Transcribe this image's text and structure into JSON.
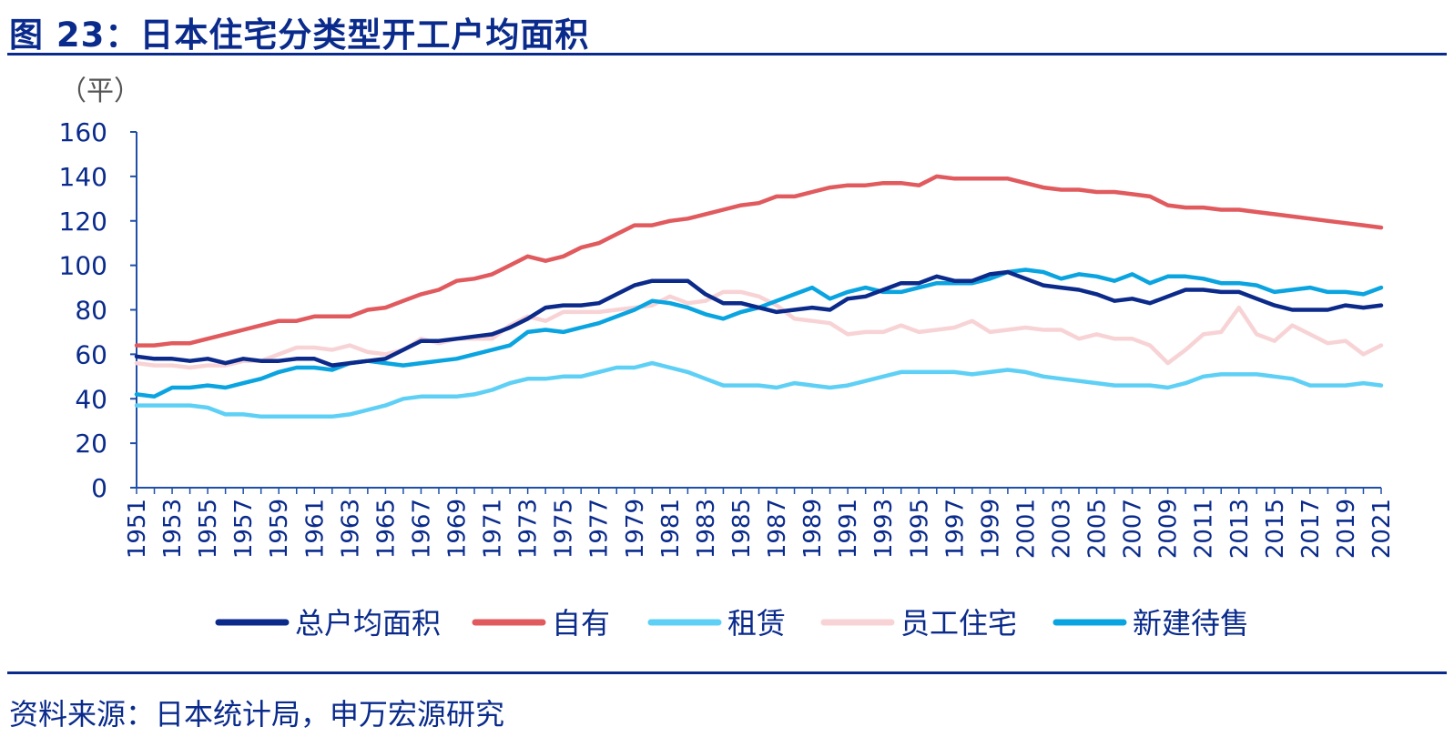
{
  "header": {
    "title": "图 23：日本住宅分类型开工户均面积"
  },
  "footer": {
    "source": "资料来源：日本统计局，申万宏源研究"
  },
  "chart_data": {
    "type": "line",
    "title": "图 23：日本住宅分类型开工户均面积",
    "ylabel": "（平）",
    "xlabel": "",
    "ylim": [
      0,
      160
    ],
    "yticks": [
      0,
      20,
      40,
      60,
      80,
      100,
      120,
      140,
      160
    ],
    "x": [
      1951,
      1952,
      1953,
      1954,
      1955,
      1956,
      1957,
      1958,
      1959,
      1960,
      1961,
      1962,
      1963,
      1964,
      1965,
      1966,
      1967,
      1968,
      1969,
      1970,
      1971,
      1972,
      1973,
      1974,
      1975,
      1976,
      1977,
      1978,
      1979,
      1980,
      1981,
      1982,
      1983,
      1984,
      1985,
      1986,
      1987,
      1988,
      1989,
      1990,
      1991,
      1992,
      1993,
      1994,
      1995,
      1996,
      1997,
      1998,
      1999,
      2000,
      2001,
      2002,
      2003,
      2004,
      2005,
      2006,
      2007,
      2008,
      2009,
      2010,
      2011,
      2012,
      2013,
      2014,
      2015,
      2016,
      2017,
      2018,
      2019,
      2020,
      2021
    ],
    "xtick_labels": [
      "1951",
      "1953",
      "1955",
      "1957",
      "1959",
      "1961",
      "1963",
      "1965",
      "1967",
      "1969",
      "1971",
      "1973",
      "1975",
      "1977",
      "1979",
      "1981",
      "1983",
      "1985",
      "1987",
      "1989",
      "1991",
      "1993",
      "1995",
      "1997",
      "1999",
      "2001",
      "2003",
      "2005",
      "2007",
      "2009",
      "2011",
      "2013",
      "2015",
      "2017",
      "2019",
      "2021"
    ],
    "grid": false,
    "legend_position": "bottom",
    "series": [
      {
        "name": "总户均面积",
        "color": "#0b2a8a",
        "values": [
          59,
          58,
          58,
          57,
          58,
          56,
          58,
          57,
          57,
          58,
          58,
          55,
          56,
          57,
          58,
          62,
          66,
          66,
          67,
          68,
          69,
          72,
          76,
          81,
          82,
          82,
          83,
          87,
          91,
          93,
          93,
          93,
          87,
          83,
          83,
          81,
          79,
          80,
          81,
          80,
          85,
          86,
          89,
          92,
          92,
          95,
          93,
          93,
          96,
          97,
          94,
          91,
          90,
          89,
          87,
          84,
          85,
          83,
          86,
          89,
          89,
          88,
          88,
          85,
          82,
          80,
          80,
          80,
          82,
          81,
          82
        ]
      },
      {
        "name": "自有",
        "color": "#e05a5e",
        "values": [
          64,
          64,
          65,
          65,
          67,
          69,
          71,
          73,
          75,
          75,
          77,
          77,
          77,
          80,
          81,
          84,
          87,
          89,
          93,
          94,
          96,
          100,
          104,
          102,
          104,
          108,
          110,
          114,
          118,
          118,
          120,
          121,
          123,
          125,
          127,
          128,
          131,
          131,
          133,
          135,
          136,
          136,
          137,
          137,
          136,
          140,
          139,
          139,
          139,
          139,
          137,
          135,
          134,
          134,
          133,
          133,
          132,
          131,
          127,
          126,
          126,
          125,
          125,
          124,
          123,
          122,
          121,
          120,
          119,
          118,
          117
        ]
      },
      {
        "name": "租赁",
        "color": "#5fd0f5",
        "values": [
          37,
          37,
          37,
          37,
          36,
          33,
          33,
          32,
          32,
          32,
          32,
          32,
          33,
          35,
          37,
          40,
          41,
          41,
          41,
          42,
          44,
          47,
          49,
          49,
          50,
          50,
          52,
          54,
          54,
          56,
          54,
          52,
          49,
          46,
          46,
          46,
          45,
          47,
          46,
          45,
          46,
          48,
          50,
          52,
          52,
          52,
          52,
          51,
          52,
          53,
          52,
          50,
          49,
          48,
          47,
          46,
          46,
          46,
          45,
          47,
          50,
          51,
          51,
          51,
          50,
          49,
          46,
          46,
          46,
          47,
          46
        ]
      },
      {
        "name": "员工住宅",
        "color": "#f8d3d5",
        "values": [
          56,
          55,
          55,
          54,
          55,
          55,
          57,
          57,
          60,
          63,
          63,
          62,
          64,
          61,
          60,
          62,
          67,
          65,
          67,
          67,
          67,
          73,
          77,
          75,
          79,
          79,
          79,
          80,
          81,
          82,
          86,
          83,
          84,
          88,
          88,
          86,
          82,
          76,
          75,
          74,
          69,
          70,
          70,
          73,
          70,
          71,
          72,
          75,
          70,
          71,
          72,
          71,
          71,
          67,
          69,
          67,
          67,
          64,
          56,
          62,
          69,
          70,
          81,
          69,
          66,
          73,
          69,
          65,
          66,
          60,
          64
        ]
      },
      {
        "name": "新建待售",
        "color": "#0aa4e0",
        "values": [
          42,
          41,
          45,
          45,
          46,
          45,
          47,
          49,
          52,
          54,
          54,
          53,
          56,
          57,
          56,
          55,
          56,
          57,
          58,
          60,
          62,
          64,
          70,
          71,
          70,
          72,
          74,
          77,
          80,
          84,
          83,
          81,
          78,
          76,
          79,
          81,
          84,
          87,
          90,
          85,
          88,
          90,
          88,
          88,
          90,
          92,
          92,
          92,
          94,
          97,
          98,
          97,
          94,
          96,
          95,
          93,
          96,
          92,
          95,
          95,
          94,
          92,
          92,
          91,
          88,
          89,
          90,
          88,
          88,
          87,
          90
        ]
      }
    ]
  }
}
